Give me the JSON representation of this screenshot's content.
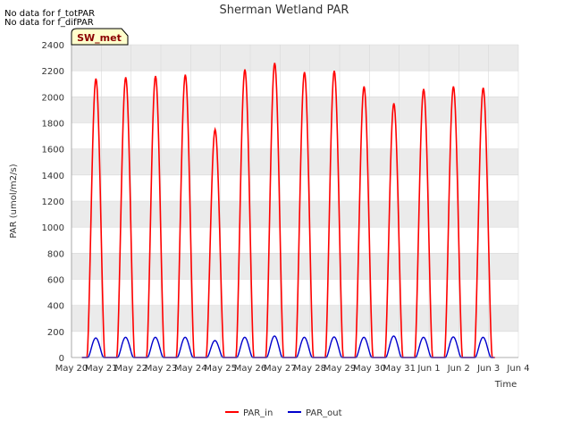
{
  "notes": [
    "No data for f_totPAR",
    "No data for f_difPAR"
  ],
  "badge": "SW_met",
  "colors": {
    "bands": "#ebebeb",
    "grid": "#d9d9d9",
    "par_in": "#ff0000",
    "par_out": "#0000cc",
    "badge_fill": "#ffffcc"
  },
  "chart_data": {
    "type": "line",
    "title": "Sherman Wetland PAR",
    "xlabel": "Time",
    "ylabel": "PAR (umol/m2/s)",
    "ylim": [
      0,
      2400
    ],
    "xlim": [
      0,
      15
    ],
    "yticks": [
      0,
      200,
      400,
      600,
      800,
      1000,
      1200,
      1400,
      1600,
      1800,
      2000,
      2200,
      2400
    ],
    "xtick_labels": [
      "May 20",
      "May 21",
      "May 22",
      "May 23",
      "May 24",
      "May 25",
      "May 26",
      "May 27",
      "May 28",
      "May 29",
      "May 30",
      "May 31",
      "Jun 1",
      "Jun 2",
      "Jun 3",
      "Jun 4"
    ],
    "legend": [
      "PAR_in",
      "PAR_out"
    ],
    "legend_position": "bottom-center",
    "series": [
      {
        "name": "PAR_in",
        "color": "#ff0000",
        "daily_peaks": [
          2140,
          2150,
          2160,
          2170,
          1750,
          2210,
          2260,
          2190,
          2200,
          2080,
          1950,
          2060,
          2080,
          2070
        ]
      },
      {
        "name": "PAR_out",
        "color": "#0000cc",
        "daily_peaks": [
          150,
          155,
          155,
          155,
          130,
          155,
          165,
          155,
          158,
          155,
          165,
          155,
          158,
          155
        ]
      }
    ]
  },
  "chart_title": "Sherman Wetland PAR"
}
